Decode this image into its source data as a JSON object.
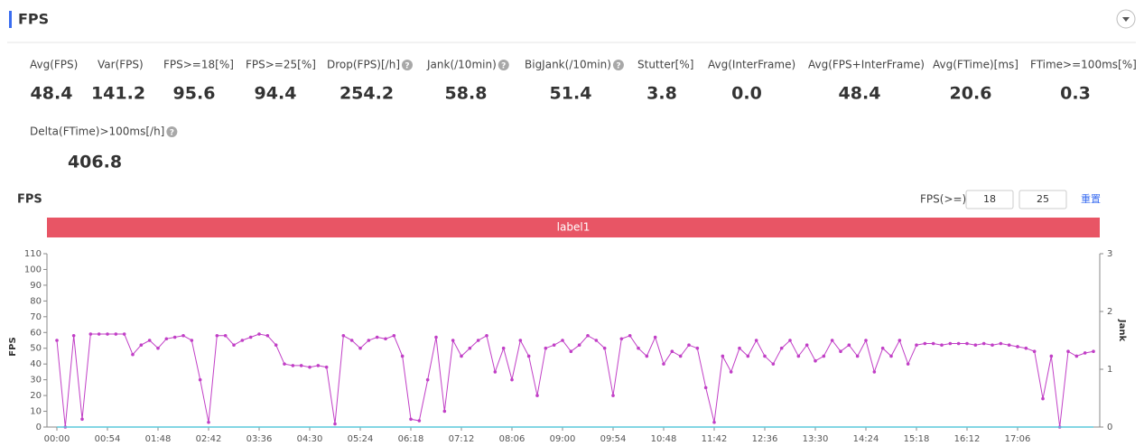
{
  "header": {
    "title": "FPS"
  },
  "metrics": [
    {
      "label": "Avg(FPS)",
      "value": "48.4"
    },
    {
      "label": "Var(FPS)",
      "value": "141.2"
    },
    {
      "label": "FPS>=18[%]",
      "value": "95.6"
    },
    {
      "label": "FPS>=25[%]",
      "value": "94.4"
    },
    {
      "label": "Drop(FPS)[/h]",
      "value": "254.2"
    },
    {
      "label": "Jank(/10min)",
      "value": "58.8"
    },
    {
      "label": "BigJank(/10min)",
      "value": "51.4"
    },
    {
      "label": "Stutter[%]",
      "value": "3.8"
    },
    {
      "label": "Avg(InterFrame)",
      "value": "0.0"
    },
    {
      "label": "Avg(FPS+InterFrame)",
      "value": "48.4"
    },
    {
      "label": "Avg(FTime)[ms]",
      "value": "20.6"
    },
    {
      "label": "FTime>=100ms[%]",
      "value": "0.3"
    },
    {
      "label": "Delta(FTime)>100ms[/h]",
      "value": "406.8"
    }
  ],
  "controls": {
    "label": "FPS(>=)",
    "low": "18",
    "high": "25",
    "reset": "重置"
  },
  "chart_data": {
    "type": "line",
    "title": "FPS",
    "band_label": "label1",
    "ylabel": "FPS",
    "y2label": "Jank",
    "categories": [
      "00:00",
      null,
      null,
      null,
      null,
      null,
      "00:54",
      null,
      null,
      null,
      null,
      null,
      "01:48",
      null,
      null,
      null,
      null,
      null,
      "02:42",
      null,
      null,
      null,
      null,
      null,
      "03:36",
      null,
      null,
      null,
      null,
      null,
      "04:30",
      null,
      null,
      null,
      null,
      null,
      "05:24",
      null,
      null,
      null,
      null,
      null,
      "06:18",
      null,
      null,
      null,
      null,
      null,
      "07:12",
      null,
      null,
      null,
      null,
      null,
      "08:06",
      null,
      null,
      null,
      null,
      null,
      "09:00",
      null,
      null,
      null,
      null,
      null,
      "09:54",
      null,
      null,
      null,
      null,
      null,
      "10:48",
      null,
      null,
      null,
      null,
      null,
      "11:42",
      null,
      null,
      null,
      null,
      null,
      "12:36",
      null,
      null,
      null,
      null,
      null,
      "13:30",
      null,
      null,
      null,
      null,
      null,
      "14:24",
      null,
      null,
      null,
      null,
      null,
      "15:18",
      null,
      null,
      null,
      null,
      null,
      "16:12",
      null,
      null,
      null,
      null,
      null,
      "17:06",
      null,
      null,
      null,
      null,
      null,
      null,
      null,
      null,
      null
    ],
    "series": [
      {
        "name": "FPS",
        "color": "#c13fc6",
        "values": [
          55,
          0,
          58,
          5,
          59,
          59,
          59,
          59,
          59,
          46,
          52,
          55,
          50,
          56,
          57,
          58,
          55,
          30,
          3,
          58,
          58,
          52,
          55,
          57,
          59,
          58,
          52,
          40,
          39,
          39,
          38,
          39,
          38,
          2,
          58,
          55,
          50,
          55,
          57,
          56,
          58,
          45,
          5,
          4,
          30,
          57,
          10,
          55,
          45,
          50,
          55,
          58,
          35,
          50,
          30,
          55,
          45,
          20,
          50,
          52,
          55,
          48,
          52,
          58,
          55,
          50,
          20,
          56,
          58,
          50,
          45,
          57,
          40,
          48,
          45,
          52,
          50,
          25,
          3,
          45,
          35,
          50,
          45,
          55,
          45,
          40,
          50,
          55,
          45,
          52,
          42,
          45,
          55,
          48,
          52,
          45,
          55,
          35,
          50,
          45,
          55,
          40,
          52,
          53,
          53,
          52,
          53,
          53,
          53,
          52,
          53,
          52,
          53,
          52,
          51,
          50,
          48,
          18,
          45,
          0,
          48,
          45,
          47,
          48
        ]
      },
      {
        "name": "Jank",
        "color": "#5cc9dc",
        "axis": "y2",
        "values": [
          0,
          0,
          0,
          0,
          0,
          0,
          0,
          0,
          0,
          0,
          0,
          0,
          0,
          0,
          0,
          0,
          0,
          0,
          0,
          0,
          0,
          0,
          0,
          0,
          0,
          0,
          0,
          0,
          0,
          0,
          0,
          0,
          0,
          0,
          0,
          0,
          0,
          0,
          0,
          0,
          0,
          0,
          0,
          0,
          0,
          0,
          0,
          0,
          0,
          0,
          0,
          0,
          0,
          0,
          0,
          0,
          0,
          0,
          0,
          0,
          0,
          0,
          0,
          0,
          0,
          0,
          0,
          0,
          0,
          0,
          0,
          0,
          0,
          0,
          0,
          0,
          0,
          0,
          0,
          0,
          0,
          0,
          0,
          0,
          0,
          0,
          0,
          0,
          0,
          0,
          0,
          0,
          0,
          0,
          0,
          0,
          0,
          0,
          0,
          0,
          0,
          0,
          0,
          0,
          0,
          0,
          0,
          0,
          0,
          0,
          0,
          0,
          0,
          0,
          0,
          0,
          0,
          0,
          0,
          0,
          0,
          0,
          0,
          0
        ]
      }
    ],
    "ylim": [
      0,
      110
    ],
    "yticks": [
      0,
      10,
      20,
      30,
      40,
      50,
      60,
      70,
      80,
      90,
      100,
      110
    ],
    "y2lim": [
      0,
      3
    ],
    "y2ticks": [
      0,
      1,
      2,
      3
    ]
  }
}
